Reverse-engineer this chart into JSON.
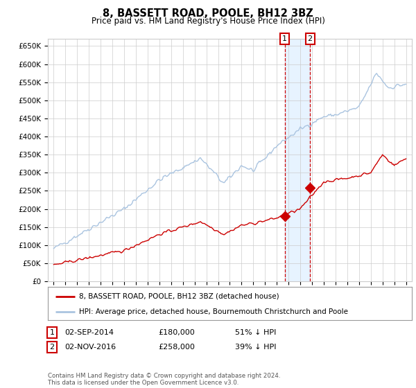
{
  "title": "8, BASSETT ROAD, POOLE, BH12 3BZ",
  "subtitle": "Price paid vs. HM Land Registry's House Price Index (HPI)",
  "hpi_color": "#aac4e0",
  "price_color": "#cc0000",
  "point1_date": 2014.67,
  "point1_value": 180000,
  "point2_date": 2016.83,
  "point2_value": 258000,
  "ylim": [
    0,
    670000
  ],
  "xlim": [
    1994.5,
    2025.5
  ],
  "yticks": [
    0,
    50000,
    100000,
    150000,
    200000,
    250000,
    300000,
    350000,
    400000,
    450000,
    500000,
    550000,
    600000,
    650000
  ],
  "legend_label1": "8, BASSETT ROAD, POOLE, BH12 3BZ (detached house)",
  "legend_label2": "HPI: Average price, detached house, Bournemouth Christchurch and Poole",
  "table_row1": [
    "1",
    "02-SEP-2014",
    "£180,000",
    "51% ↓ HPI"
  ],
  "table_row2": [
    "2",
    "02-NOV-2016",
    "£258,000",
    "39% ↓ HPI"
  ],
  "footer": "Contains HM Land Registry data © Crown copyright and database right 2024.\nThis data is licensed under the Open Government Licence v3.0.",
  "background_color": "#ffffff",
  "grid_color": "#cccccc",
  "span_color": "#ddeeff",
  "span_alpha": 0.7
}
